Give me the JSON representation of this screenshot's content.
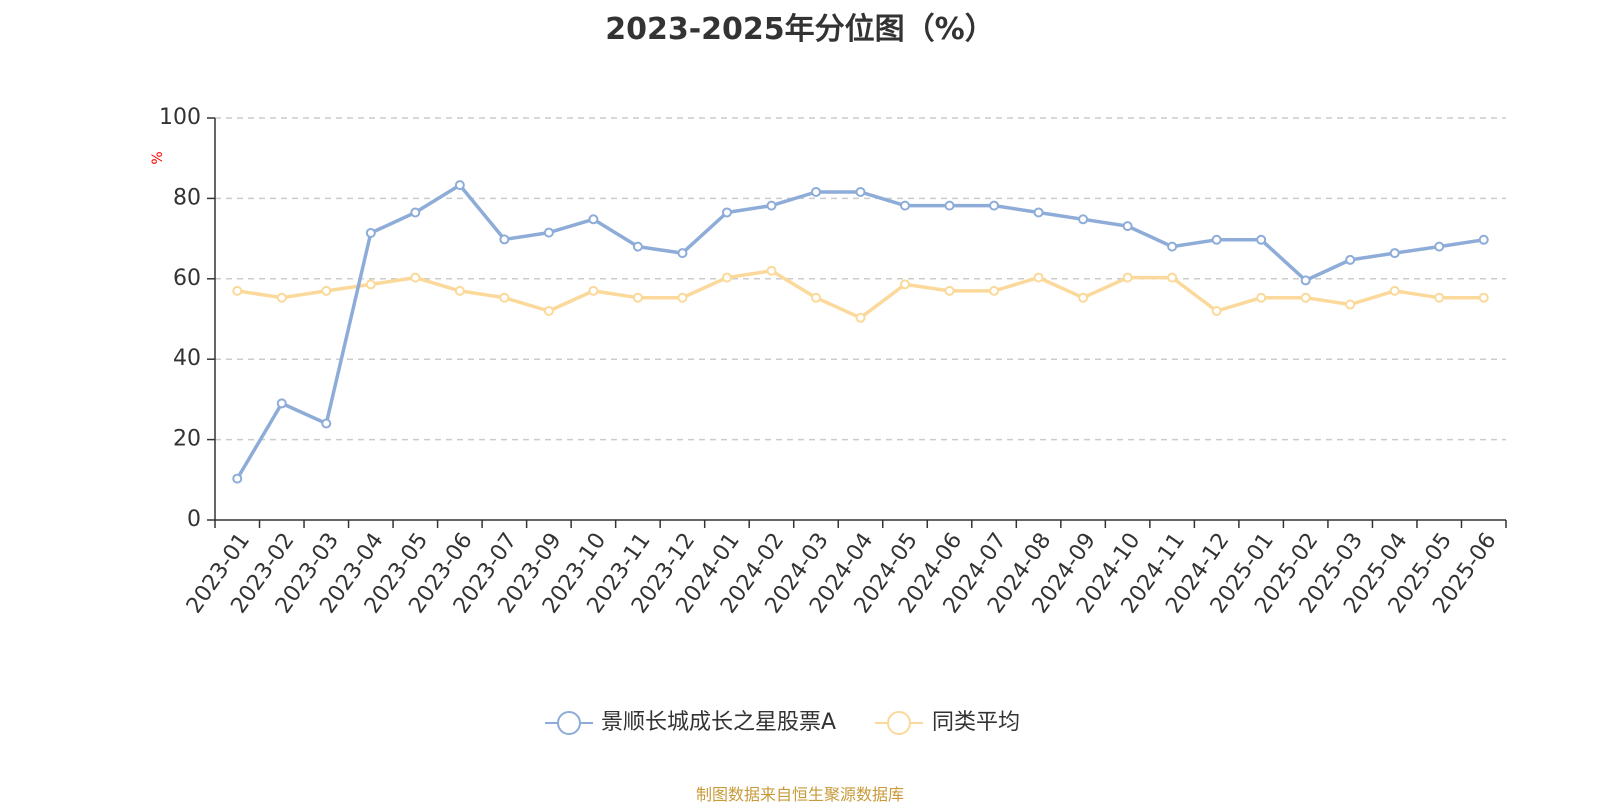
{
  "chart_data": {
    "type": "line",
    "title": "2023-2025年分位图（%）",
    "ylabel": "%",
    "ylim": [
      0,
      100
    ],
    "yticks": [
      0,
      20,
      40,
      60,
      80,
      100
    ],
    "grid": true,
    "legend_position": "bottom",
    "categories": [
      "2023-01",
      "2023-02",
      "2023-03",
      "2023-04",
      "2023-05",
      "2023-06",
      "2023-07",
      "2023-09",
      "2023-10",
      "2023-11",
      "2023-12",
      "2024-01",
      "2024-02",
      "2024-03",
      "2024-04",
      "2024-05",
      "2024-06",
      "2024-07",
      "2024-08",
      "2024-09",
      "2024-10",
      "2024-11",
      "2024-12",
      "2025-01",
      "2025-02",
      "2025-03",
      "2025-04",
      "2025-05",
      "2025-06"
    ],
    "series": [
      {
        "name": "景顺长城成长之星股票A",
        "color": "#8eacd8",
        "values": [
          10.3,
          29.0,
          24.0,
          71.4,
          76.5,
          83.3,
          69.8,
          71.5,
          74.8,
          68.0,
          66.4,
          76.5,
          78.2,
          81.6,
          81.6,
          78.2,
          78.2,
          78.2,
          76.5,
          74.8,
          73.1,
          68.0,
          69.7,
          69.7,
          59.6,
          64.7,
          66.4,
          68.0,
          69.7
        ]
      },
      {
        "name": "同类平均",
        "color": "#fbd99a",
        "values": [
          57.0,
          55.3,
          57.0,
          58.6,
          60.3,
          57.0,
          55.3,
          52.0,
          57.0,
          55.3,
          55.3,
          60.3,
          62.0,
          55.3,
          50.3,
          58.6,
          57.0,
          57.0,
          60.3,
          55.3,
          60.3,
          60.3,
          52.0,
          55.3,
          55.3,
          53.6,
          57.0,
          55.3,
          55.3
        ]
      }
    ]
  },
  "source_note": "制图数据来自恒生聚源数据库",
  "colors": {
    "ylabel": "#ff0000",
    "source_note": "#c89a3a",
    "grid": "#cccccc",
    "axis": "#333333"
  }
}
